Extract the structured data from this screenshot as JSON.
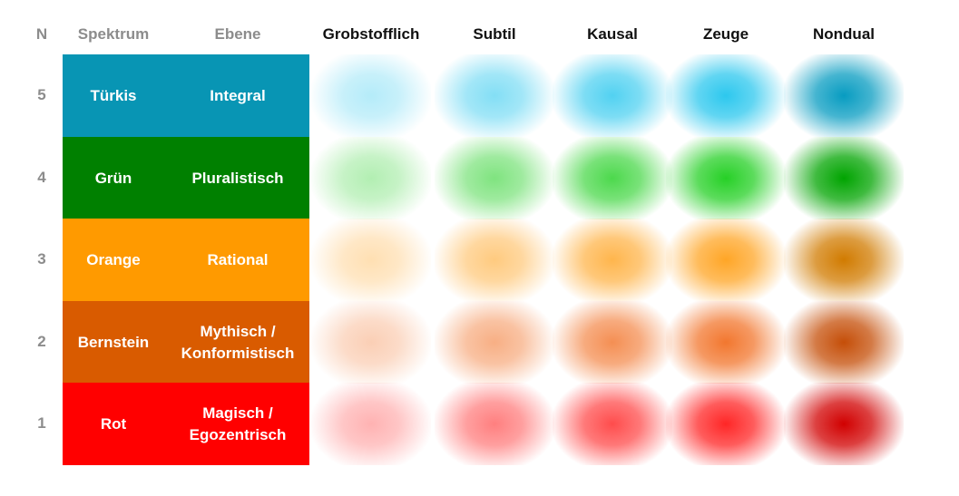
{
  "headers": {
    "n": "N",
    "spectrum": "Spektrum",
    "level": "Ebene",
    "states": [
      "Grobstofflich",
      "Subtil",
      "Kausal",
      "Zeuge",
      "Nondual"
    ]
  },
  "rows": [
    {
      "n": "5",
      "spectrum": "Türkis",
      "level": "Integral",
      "color": "#0895b4",
      "glow": [
        8,
        190,
        235
      ]
    },
    {
      "n": "4",
      "spectrum": "Grün",
      "level": "Pluralistisch",
      "color": "#008000",
      "glow": [
        0,
        200,
        0
      ]
    },
    {
      "n": "3",
      "spectrum": "Orange",
      "level": "Rational",
      "color": "#ff9a00",
      "glow": [
        255,
        150,
        0
      ]
    },
    {
      "n": "2",
      "spectrum": "Bernstein",
      "level": "Mythisch / Konformistisch",
      "color": "#d95b00",
      "glow": [
        240,
        95,
        10
      ]
    },
    {
      "n": "1",
      "spectrum": "Rot",
      "level": "Magisch / Egozentrisch",
      "color": "#ff0000",
      "glow": [
        255,
        0,
        0
      ]
    }
  ],
  "state_intensity": [
    0.3,
    0.5,
    0.7,
    0.85,
    1.0
  ]
}
